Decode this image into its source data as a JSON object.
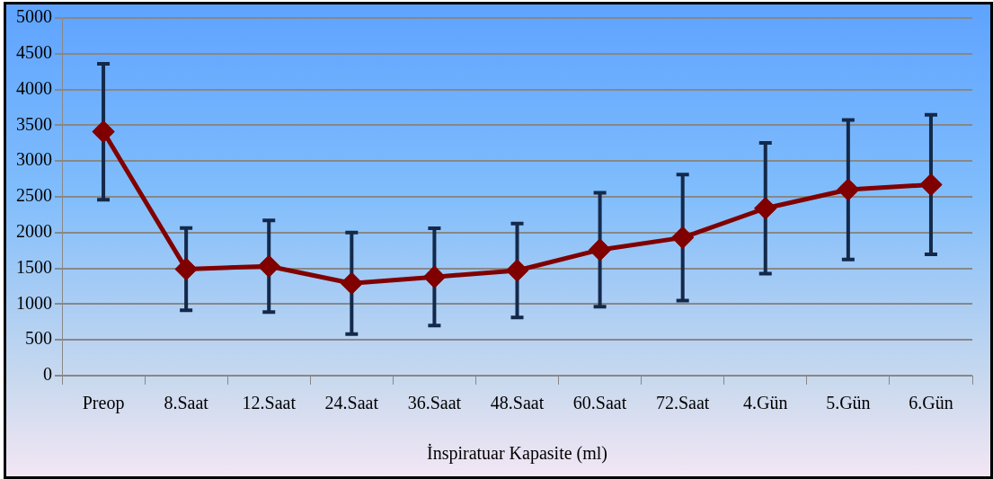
{
  "chart_data": {
    "type": "line",
    "xlabel": "İnspiratuar Kapasite (ml)",
    "categories": [
      "Preop",
      "8.Saat",
      "12.Saat",
      "24.Saat",
      "36.Saat",
      "48.Saat",
      "60.Saat",
      "72.Saat",
      "4.Gün",
      "5.Gün",
      "6.Gün"
    ],
    "series": [
      {
        "color": "#800000",
        "values": [
          3410,
          1490,
          1530,
          1290,
          1380,
          1470,
          1760,
          1930,
          2340,
          2600,
          2670
        ],
        "errors": [
          950,
          575,
          640,
          710,
          680,
          655,
          795,
          880,
          915,
          975,
          975
        ]
      }
    ],
    "ylim": [
      0,
      5000
    ],
    "yticks": [
      0,
      500,
      1000,
      1500,
      2000,
      2500,
      3000,
      3500,
      4000,
      4500,
      5000
    ],
    "grid": "y",
    "legend": false,
    "marker": "diamond",
    "line_style": "solid"
  }
}
